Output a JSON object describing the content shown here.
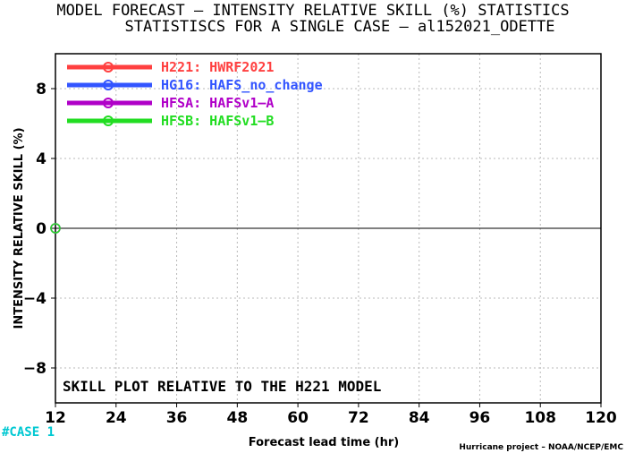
{
  "title_line1": "MODEL FORECAST – INTENSITY RELATIVE SKILL (%) STATISTICS",
  "title_line2": "STATISTISCS FOR A SINGLE CASE – al152021_ODETTE",
  "annotation": "SKILL PLOT RELATIVE TO THE H221 MODEL",
  "case_label": "#CASE  1",
  "credit": "Hurricane project – NOAA/NCEP/EMC",
  "chart_data": {
    "type": "line",
    "xlabel": "Forecast lead time (hr)",
    "ylabel": "INTENSITY RELATIVE SKILL (%)",
    "xlim": [
      12,
      120
    ],
    "ylim": [
      -10,
      10
    ],
    "x_ticks": [
      12,
      24,
      36,
      48,
      60,
      72,
      84,
      96,
      108,
      120
    ],
    "y_ticks": [
      -8,
      -4,
      0,
      4,
      8
    ],
    "x_tick_labels": [
      "12",
      "24",
      "36",
      "48",
      "60",
      "72",
      "84",
      "96",
      "108",
      "120"
    ],
    "y_tick_labels": [
      "−8",
      "−4",
      "0",
      "4",
      "8"
    ],
    "grid": true,
    "legend_position": "top-left",
    "zero_line": true,
    "series": [
      {
        "name": "H221: HWRF2021",
        "color": "#ff4040",
        "x": [
          12
        ],
        "y": [
          0
        ]
      },
      {
        "name": "HG16: HAFS_no_change",
        "color": "#3355ff",
        "x": [
          12
        ],
        "y": [
          0
        ]
      },
      {
        "name": "HFSA: HAFSv1–A",
        "color": "#b000c8",
        "x": [
          12
        ],
        "y": [
          0
        ]
      },
      {
        "name": "HFSB: HAFSv1–B",
        "color": "#22dd22",
        "x": [
          12
        ],
        "y": [
          0
        ]
      }
    ]
  }
}
